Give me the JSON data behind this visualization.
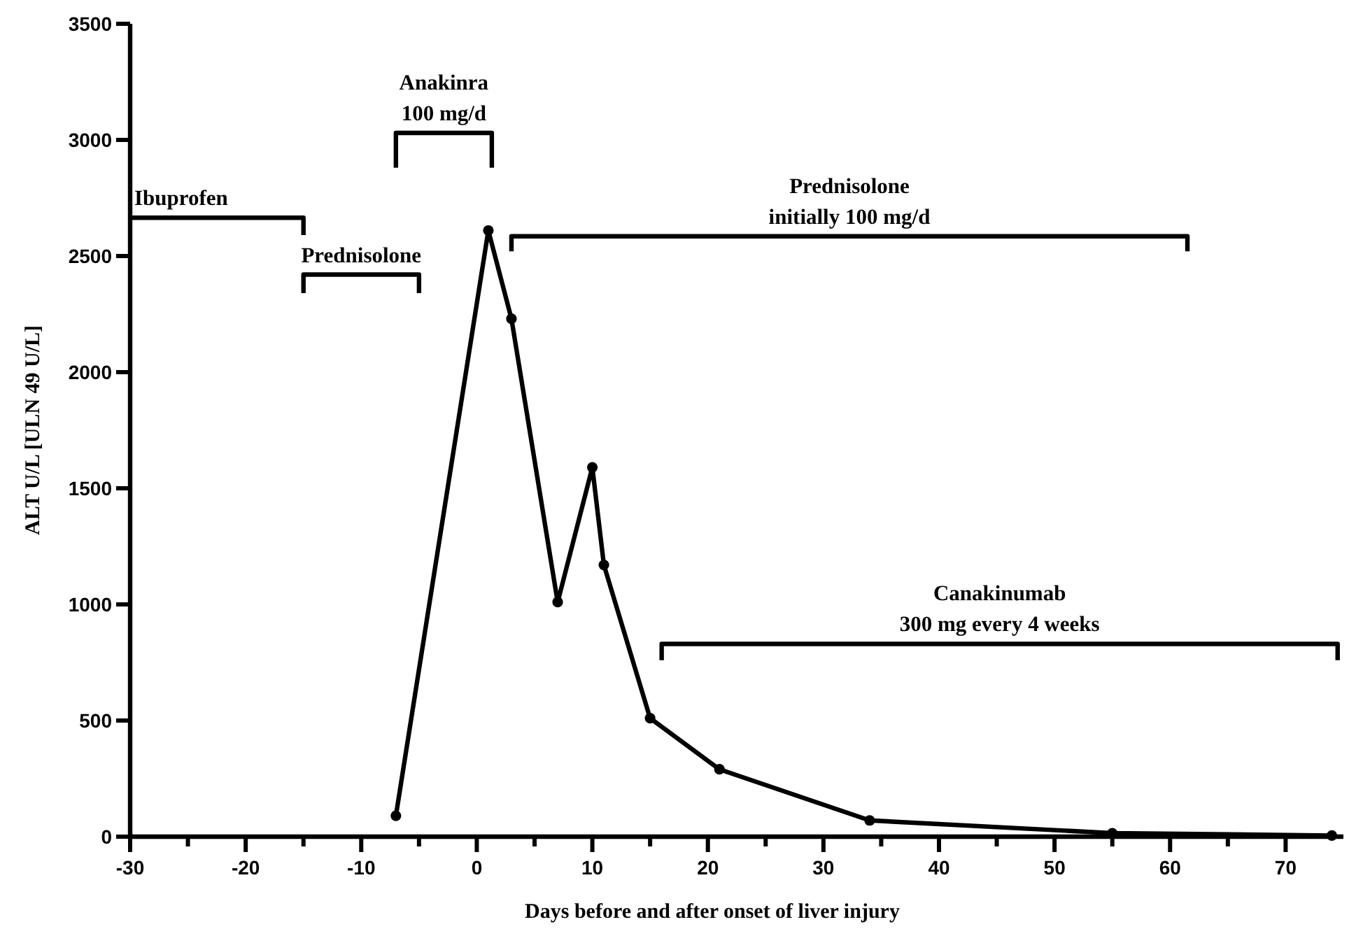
{
  "chart_data": {
    "type": "line",
    "xlabel": "Days before and after onset of liver injury",
    "ylabel": "ALT U/L [ULN 49 U/L]",
    "x": [
      -7,
      1,
      3,
      7,
      10,
      11,
      15,
      21,
      34,
      55,
      74
    ],
    "series": [
      {
        "color": "#000000",
        "values": [
          90,
          2610,
          2230,
          1010,
          1590,
          1170,
          510,
          290,
          70,
          15,
          5
        ]
      },
      {
        "name": "Ibuprofen",
        "color": "#000000",
        "marker": "none",
        "x": [
          -30,
          -15,
          -15
        ],
        "values": [
          2665,
          2665,
          2590
        ]
      },
      {
        "name": "Prednisolone",
        "color": "#000000",
        "marker": "none",
        "x": [
          -15,
          -15,
          -5,
          -5
        ],
        "values": [
          2340,
          2420,
          2420,
          2340
        ]
      },
      {
        "name": "Anakinra\n100 mg/d",
        "color": "#000000",
        "marker": "none",
        "x": [
          -7,
          -7,
          1.3,
          1.3
        ],
        "values": [
          2880,
          3030,
          3030,
          2880
        ]
      },
      {
        "name": "Prednisolone\ninitially 100 mg/d",
        "color": "#000000",
        "marker": "none",
        "x": [
          3,
          3,
          61.5,
          61.5
        ],
        "values": [
          2520,
          2585,
          2585,
          2520
        ]
      },
      {
        "name": "Canakinumab\n300 mg every 4 weeks",
        "color": "#000000",
        "marker": "none",
        "x": [
          16,
          16,
          74.5,
          74.5
        ],
        "values": [
          760,
          830,
          830,
          760
        ]
      }
    ],
    "xlim": [
      -30,
      75
    ],
    "xticks": [
      -30,
      {
        "value": -25,
        "label": null
      },
      -20,
      {
        "value": -15,
        "label": null
      },
      -10,
      {
        "value": -5,
        "label": null
      },
      0,
      {
        "value": 5,
        "label": null
      },
      10,
      {
        "value": 15,
        "label": null
      },
      20,
      {
        "value": 25,
        "label": null
      },
      30,
      {
        "value": 35,
        "label": null
      },
      40,
      {
        "value": 45,
        "label": null
      },
      50,
      {
        "value": 55,
        "label": null
      },
      60,
      {
        "value": 65,
        "label": null
      },
      70
    ],
    "ylim": [
      0,
      3500
    ],
    "yticks": [
      0,
      500,
      1000,
      1500,
      2000,
      2500,
      3000,
      3500
    ],
    "grid": false,
    "marker": "circle",
    "line_style": "solid"
  }
}
